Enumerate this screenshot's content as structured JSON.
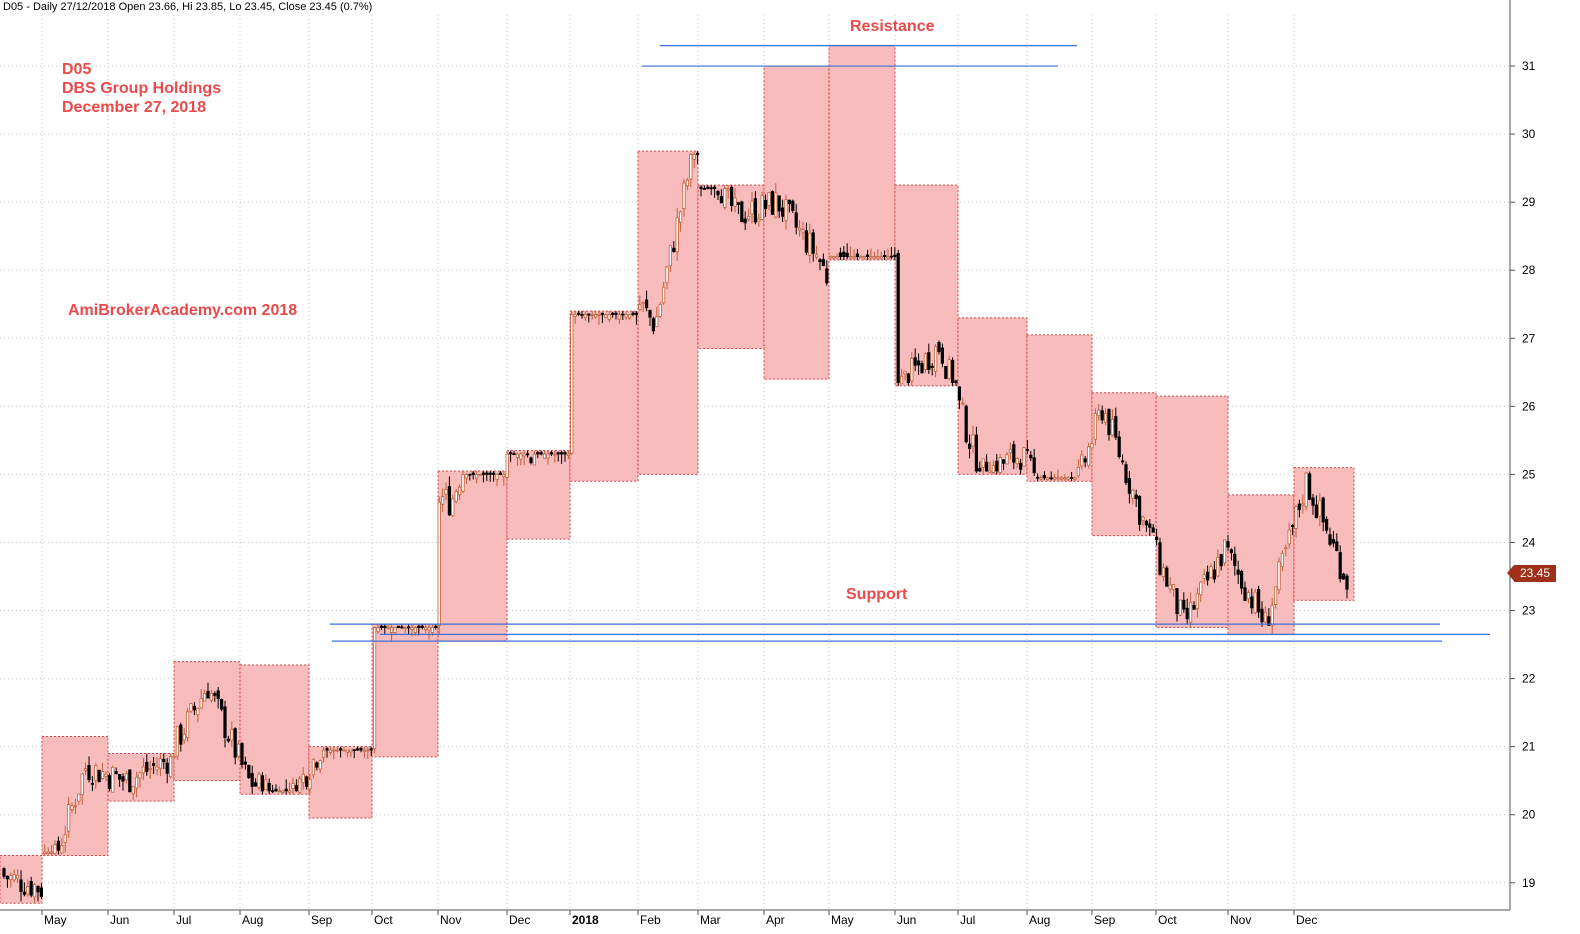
{
  "header": {
    "text": "D05 - Daily 27/12/2018 Open 23.66, Hi 23.85, Lo 23.45, Close 23.45 (0.7%)"
  },
  "annotations": {
    "ticker": "D05",
    "company": "DBS Group Holdings",
    "date": "December 27, 2018",
    "watermark": "AmiBrokerAcademy.com  2018",
    "resistance": "Resistance",
    "support": "Support"
  },
  "last_price": "23.45",
  "colors": {
    "box_fill": "#f8b9b9",
    "box_border": "#d83a3a",
    "line_blue": "#3d6fd8",
    "up_candle": "#c0603a",
    "down_candle": "#000000",
    "annotation": "#ea4a4a",
    "grid": "#c8c8c8",
    "price_tag": "#a0301a"
  },
  "chart_data": {
    "type": "candlestick",
    "y_axis": {
      "side": "right",
      "ticks": [
        19,
        20,
        21,
        22,
        23,
        24,
        25,
        26,
        27,
        28,
        29,
        30,
        31
      ]
    },
    "x_axis_labels": [
      "May",
      "Jun",
      "Jul",
      "Aug",
      "Sep",
      "Oct",
      "Nov",
      "Dec",
      "2018",
      "Feb",
      "Mar",
      "Apr",
      "May",
      "Jun",
      "Jul",
      "Aug",
      "Sep",
      "Oct",
      "Nov",
      "Dec"
    ],
    "grid": true,
    "monthly_ranges": [
      {
        "month": "Apr 2017",
        "low": 18.7,
        "high": 19.4
      },
      {
        "month": "May 2017",
        "low": 19.4,
        "high": 21.15
      },
      {
        "month": "Jun 2017",
        "low": 20.2,
        "high": 20.9
      },
      {
        "month": "Jul 2017",
        "low": 20.5,
        "high": 22.25
      },
      {
        "month": "Aug 2017",
        "low": 20.3,
        "high": 22.2
      },
      {
        "month": "Sep 2017",
        "low": 19.95,
        "high": 21.0
      },
      {
        "month": "Oct 2017",
        "low": 20.85,
        "high": 22.8
      },
      {
        "month": "Nov 2017",
        "low": 22.55,
        "high": 25.05
      },
      {
        "month": "Dec 2017",
        "low": 24.05,
        "high": 25.35
      },
      {
        "month": "Jan 2018",
        "low": 24.9,
        "high": 27.4
      },
      {
        "month": "Feb 2018",
        "low": 25.0,
        "high": 29.75
      },
      {
        "month": "Mar 2018",
        "low": 26.85,
        "high": 29.25
      },
      {
        "month": "Apr 2018",
        "low": 26.4,
        "high": 31.0
      },
      {
        "month": "May 2018",
        "low": 28.15,
        "high": 31.3
      },
      {
        "month": "Jun 2018",
        "low": 26.3,
        "high": 29.25
      },
      {
        "month": "Jul 2018",
        "low": 25.0,
        "high": 27.3
      },
      {
        "month": "Aug 2018",
        "low": 24.9,
        "high": 27.05
      },
      {
        "month": "Sep 2018",
        "low": 24.1,
        "high": 26.2
      },
      {
        "month": "Oct 2018",
        "low": 22.75,
        "high": 26.15
      },
      {
        "month": "Nov 2018",
        "low": 22.65,
        "high": 24.7
      },
      {
        "month": "Dec 2018",
        "low": 23.15,
        "high": 25.1
      }
    ],
    "resistance_lines": [
      31.3,
      31.0
    ],
    "support_lines": [
      22.8,
      22.65,
      22.55
    ],
    "last": {
      "open": 23.66,
      "high": 23.85,
      "low": 23.45,
      "close": 23.45
    }
  }
}
